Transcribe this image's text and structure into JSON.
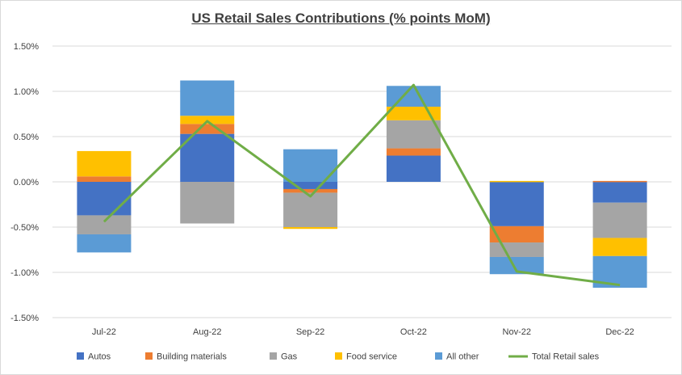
{
  "chart_data": {
    "type": "bar",
    "stacked": true,
    "title": "US Retail Sales Contributions (% points MoM)",
    "xlabel": "",
    "ylabel": "",
    "ylim": [
      -1.5,
      1.5
    ],
    "yticks": [
      1.5,
      1.0,
      0.5,
      0.0,
      -0.5,
      -1.0,
      -1.5
    ],
    "ytick_labels": [
      "1.50%",
      "1.00%",
      "0.50%",
      "0.00%",
      "-0.50%",
      "-1.00%",
      "-1.50%"
    ],
    "grid": true,
    "legend_position": "bottom",
    "categories": [
      "Jul-22",
      "Aug-22",
      "Sep-22",
      "Oct-22",
      "Nov-22",
      "Dec-22"
    ],
    "series": [
      {
        "name": "Autos",
        "color": "#4472c4",
        "values": [
          -0.37,
          0.53,
          -0.08,
          0.29,
          -0.49,
          -0.23
        ]
      },
      {
        "name": "Building materials",
        "color": "#ed7d31",
        "values": [
          0.06,
          0.11,
          -0.04,
          0.08,
          -0.18,
          0.01
        ]
      },
      {
        "name": "Gas",
        "color": "#a5a5a5",
        "values": [
          -0.21,
          -0.46,
          -0.38,
          0.31,
          -0.16,
          -0.39
        ]
      },
      {
        "name": "Food service",
        "color": "#ffc000",
        "values": [
          0.28,
          0.09,
          -0.02,
          0.15,
          0.01,
          -0.2
        ]
      },
      {
        "name": "All other",
        "color": "#5b9bd5",
        "values": [
          -0.2,
          0.39,
          0.36,
          0.23,
          -0.19,
          -0.35
        ]
      }
    ],
    "line_series": {
      "name": "Total Retail sales",
      "color": "#70ad47",
      "values": [
        -0.44,
        0.67,
        -0.16,
        1.07,
        -0.99,
        -1.14
      ]
    }
  }
}
